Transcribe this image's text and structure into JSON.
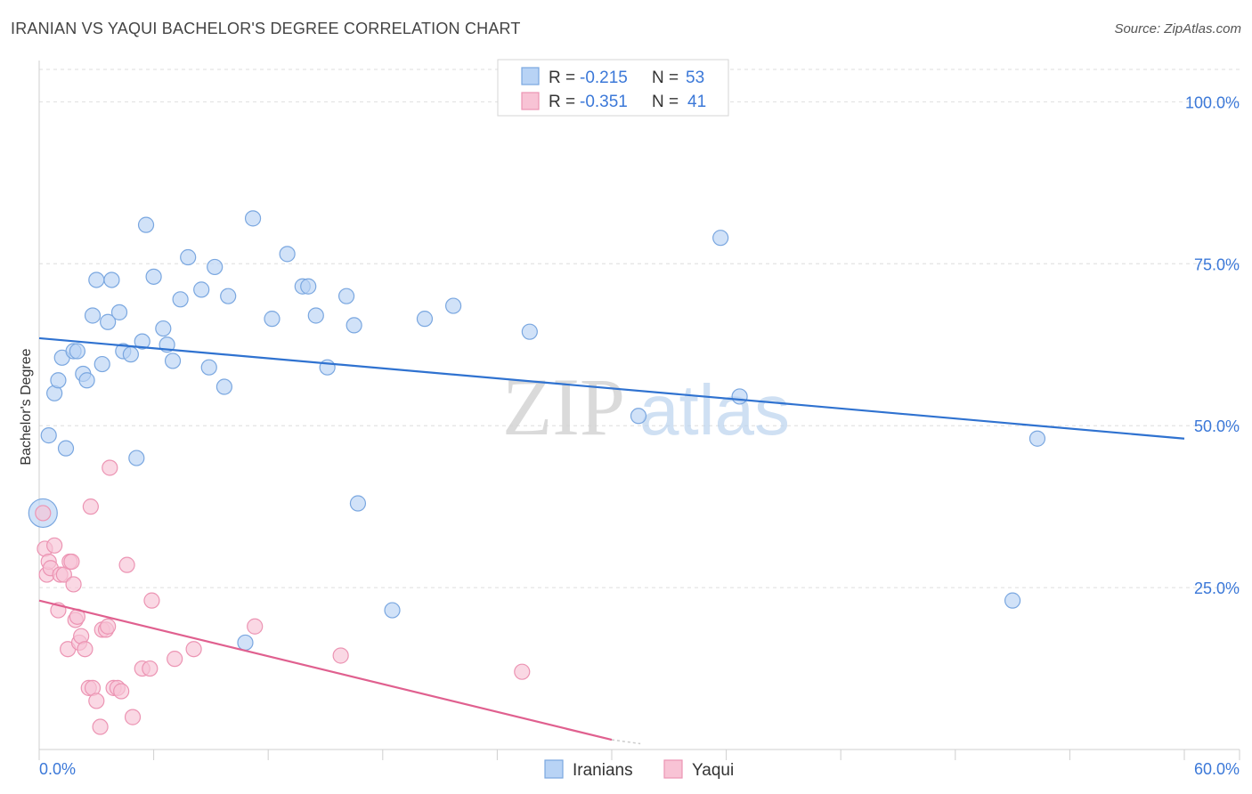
{
  "chart_data": {
    "type": "scatter",
    "title": "IRANIAN VS YAQUI BACHELOR'S DEGREE CORRELATION CHART",
    "source": "Source: ZipAtlas.com",
    "xlabel": "",
    "ylabel": "Bachelor's Degree",
    "xlim": [
      0,
      60
    ],
    "ylim": [
      0,
      105
    ],
    "x_tick_labels": {
      "left": "0.0%",
      "right": "60.0%"
    },
    "y_ticks": [
      25,
      50,
      75,
      100
    ],
    "y_tick_labels": [
      "25.0%",
      "50.0%",
      "75.0%",
      "100.0%"
    ],
    "grid": true,
    "watermark": {
      "zip": "ZIP",
      "atlas": "atlas"
    },
    "legend": {
      "position": "top-center",
      "r_label": "R =",
      "n_label": "N =",
      "entries": [
        {
          "r": "-0.215",
          "n": "53"
        },
        {
          "r": "-0.351",
          "n": "41"
        }
      ]
    },
    "bottom_legend": [
      "Iranians",
      "Yaqui"
    ],
    "colors": {
      "iranians_fill": "#b8d3f5",
      "iranians_stroke": "#7aa7e0",
      "iranians_line": "#2f72d0",
      "yaqui_fill": "#f8c3d5",
      "yaqui_stroke": "#ec94b3",
      "yaqui_line": "#e0608f",
      "tick_label": "#3b78d8"
    },
    "series": [
      {
        "name": "Iranians",
        "trend": {
          "x": [
            0,
            60
          ],
          "y": [
            63.5,
            48.0
          ]
        },
        "points": [
          [
            0.2,
            36.5,
            "big"
          ],
          [
            0.5,
            48.5
          ],
          [
            0.8,
            55
          ],
          [
            1.0,
            57
          ],
          [
            1.2,
            60.5
          ],
          [
            1.4,
            46.5
          ],
          [
            1.8,
            61.5
          ],
          [
            2.0,
            61.5
          ],
          [
            2.3,
            58
          ],
          [
            2.5,
            57
          ],
          [
            2.8,
            67
          ],
          [
            3.0,
            72.5
          ],
          [
            3.3,
            59.5
          ],
          [
            3.6,
            66
          ],
          [
            3.8,
            72.5
          ],
          [
            4.2,
            67.5
          ],
          [
            4.4,
            61.5
          ],
          [
            4.8,
            61
          ],
          [
            5.1,
            45
          ],
          [
            5.4,
            63
          ],
          [
            5.6,
            81
          ],
          [
            6.0,
            73
          ],
          [
            6.5,
            65
          ],
          [
            6.7,
            62.5
          ],
          [
            7.0,
            60
          ],
          [
            7.4,
            69.5
          ],
          [
            7.8,
            76
          ],
          [
            8.5,
            71
          ],
          [
            8.9,
            59
          ],
          [
            9.2,
            74.5
          ],
          [
            9.7,
            56
          ],
          [
            9.9,
            70
          ],
          [
            10.8,
            16.5
          ],
          [
            11.2,
            82
          ],
          [
            12.2,
            66.5
          ],
          [
            13.0,
            76.5
          ],
          [
            13.8,
            71.5
          ],
          [
            14.1,
            71.5
          ],
          [
            14.5,
            67
          ],
          [
            15.1,
            59
          ],
          [
            16.1,
            70
          ],
          [
            16.5,
            65.5
          ],
          [
            16.7,
            38
          ],
          [
            18.5,
            21.5
          ],
          [
            20.2,
            66.5
          ],
          [
            21.7,
            68.5
          ],
          [
            25.7,
            64.5
          ],
          [
            31.4,
            51.5
          ],
          [
            35.7,
            79
          ],
          [
            36.7,
            54.5
          ],
          [
            51.0,
            23
          ],
          [
            52.3,
            48
          ]
        ]
      },
      {
        "name": "Yaqui",
        "trend": {
          "x": [
            0,
            30
          ],
          "y": [
            23.0,
            1.5
          ]
        },
        "trend_dash": {
          "x": [
            30,
            31.5
          ],
          "y": [
            1.5,
            0.9
          ]
        },
        "points": [
          [
            0.2,
            36.5
          ],
          [
            0.3,
            31
          ],
          [
            0.4,
            27
          ],
          [
            0.5,
            29
          ],
          [
            0.6,
            28
          ],
          [
            0.8,
            31.5
          ],
          [
            1.0,
            21.5
          ],
          [
            1.1,
            27
          ],
          [
            1.3,
            27
          ],
          [
            1.5,
            15.5
          ],
          [
            1.6,
            29
          ],
          [
            1.7,
            29
          ],
          [
            1.8,
            25.5
          ],
          [
            1.9,
            20
          ],
          [
            2.0,
            20.5
          ],
          [
            2.1,
            16.5
          ],
          [
            2.2,
            17.5
          ],
          [
            2.4,
            15.5
          ],
          [
            2.6,
            9.5
          ],
          [
            2.7,
            37.5
          ],
          [
            2.8,
            9.5
          ],
          [
            3.0,
            7.5
          ],
          [
            3.2,
            3.5
          ],
          [
            3.3,
            18.5
          ],
          [
            3.5,
            18.5
          ],
          [
            3.6,
            19
          ],
          [
            3.7,
            43.5
          ],
          [
            3.9,
            9.5
          ],
          [
            4.1,
            9.5
          ],
          [
            4.3,
            9
          ],
          [
            4.6,
            28.5
          ],
          [
            4.9,
            5
          ],
          [
            5.4,
            12.5
          ],
          [
            5.8,
            12.5
          ],
          [
            5.9,
            23
          ],
          [
            7.1,
            14
          ],
          [
            8.1,
            15.5
          ],
          [
            11.3,
            19
          ],
          [
            15.8,
            14.5
          ],
          [
            25.3,
            12
          ]
        ]
      }
    ]
  }
}
